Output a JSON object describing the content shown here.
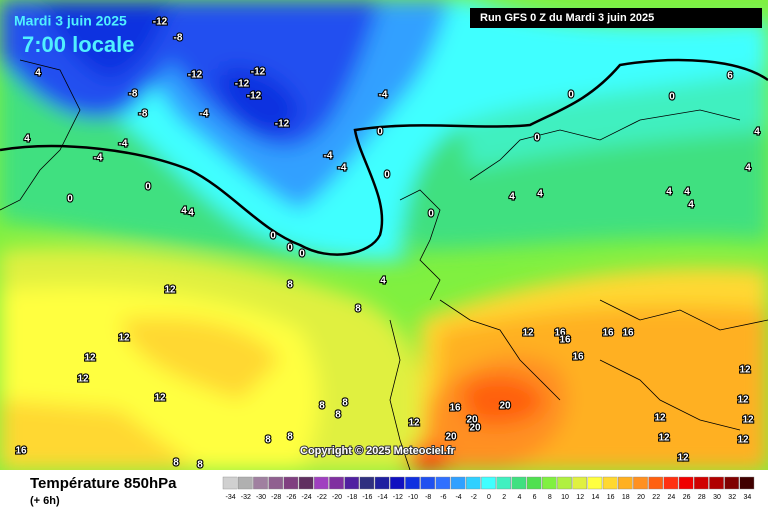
{
  "header": {
    "date": "Mardi 3 juin 2025",
    "time": "7:00 locale",
    "run": "Run GFS 0 Z du Mardi 3 juin 2025"
  },
  "footer": {
    "title": "Température 850hPa",
    "lead": "(+ 6h)",
    "copyright": "Copyright © 2025 Meteociel.fr"
  },
  "legend": {
    "values": [
      -34,
      -32,
      -30,
      -28,
      -26,
      -24,
      -22,
      -20,
      -18,
      -16,
      -14,
      -12,
      -10,
      -8,
      -6,
      -4,
      -2,
      0,
      2,
      4,
      6,
      8,
      10,
      12,
      14,
      16,
      18,
      20,
      22,
      24,
      26,
      28,
      30,
      32,
      34
    ],
    "colors": [
      "#d0d0d0",
      "#b0b0b0",
      "#a080a0",
      "#906090",
      "#804080",
      "#603060",
      "#a040c0",
      "#8030a0",
      "#5020a0",
      "#303080",
      "#2020a0",
      "#1010c0",
      "#1030e0",
      "#2050f0",
      "#3070ff",
      "#30a0ff",
      "#30d0ff",
      "#40ffff",
      "#40f0c0",
      "#40e080",
      "#50e050",
      "#80f040",
      "#b0f040",
      "#e0f040",
      "#ffff40",
      "#ffd830",
      "#ffb020",
      "#ff9020",
      "#ff6010",
      "#ff3010",
      "#f00000",
      "#d00000",
      "#b00000",
      "#800000",
      "#400000"
    ]
  },
  "contour_labels": [
    -12,
    -12,
    -12,
    -12,
    -12,
    -12,
    -8,
    -8,
    -8,
    -4,
    -4,
    -4,
    -4,
    -4,
    -4,
    0,
    0,
    0,
    0,
    0,
    0,
    0,
    0,
    0,
    0,
    0,
    4,
    4,
    4,
    4,
    4,
    4,
    4,
    4,
    4,
    4,
    4,
    4,
    6,
    8,
    8,
    12,
    12,
    12,
    12,
    12,
    12,
    12,
    16,
    16,
    16,
    16,
    16,
    16,
    20,
    20,
    20,
    20,
    12,
    12,
    12,
    12,
    12,
    12,
    12,
    16,
    8,
    8,
    8,
    8,
    8,
    8,
    8
  ]
}
